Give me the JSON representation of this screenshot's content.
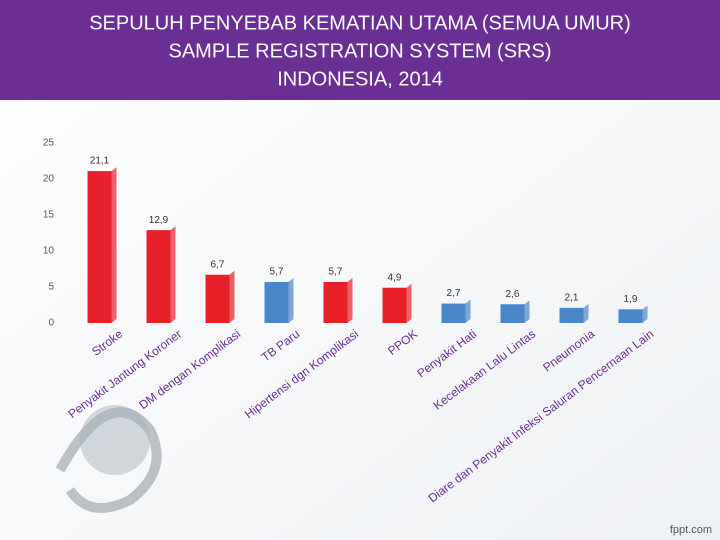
{
  "chart_data": {
    "type": "bar",
    "title": [
      "SEPULUH PENYEBAB KEMATIAN UTAMA (SEMUA UMUR)",
      "SAMPLE REGISTRATION SYSTEM (SRS)",
      "INDONESIA, 2014"
    ],
    "categories": [
      "Stroke",
      "Penyakit Jantung Koroner",
      "DM dengan Komplikasi",
      "TB Paru",
      "Hipertensi dgn Komplikasi",
      "PPOK",
      "Penyakit Hati",
      "Kecelakaan Lalu Lintas",
      "Pneumonia",
      "Diare dan Penyakit Infeksi Saluran Pencernaan Lain"
    ],
    "values": [
      21.1,
      12.9,
      6.7,
      5.7,
      5.7,
      4.9,
      2.7,
      2.6,
      2.1,
      1.9
    ],
    "value_labels": [
      "21,1",
      "12,9",
      "6,7",
      "5,7",
      "5,7",
      "4,9",
      "2,7",
      "2,6",
      "2,1",
      "1,9"
    ],
    "colors": [
      "#e8202a",
      "#e8202a",
      "#e8202a",
      "#4a86c8",
      "#e8202a",
      "#e8202a",
      "#4a86c8",
      "#4a86c8",
      "#4a86c8",
      "#4a86c8"
    ],
    "ylim": [
      0,
      25
    ],
    "yticks": [
      0,
      5,
      10,
      15,
      20,
      25
    ],
    "grid": false
  },
  "watermark": "fppt.com"
}
